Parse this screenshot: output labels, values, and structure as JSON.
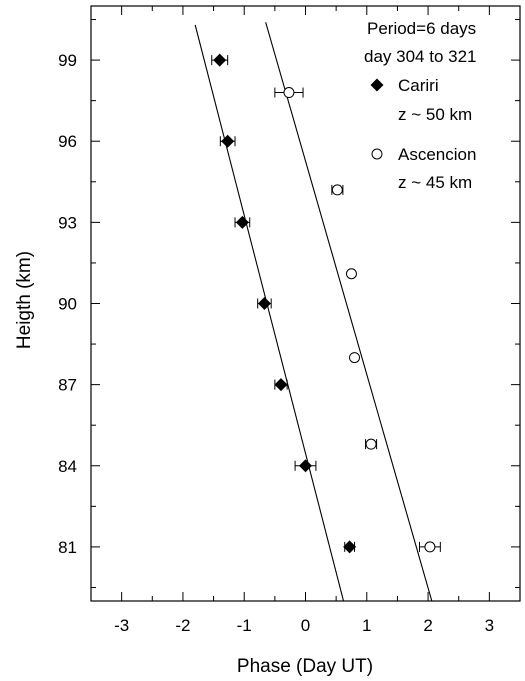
{
  "chart_data": {
    "type": "scatter",
    "xlabel": "Phase (Day UT)",
    "ylabel": "Heigth (km)",
    "xlim": [
      -3.5,
      3.5
    ],
    "ylim": [
      79.0,
      101.0
    ],
    "x_ticks": [
      "-3",
      "-2",
      "-1",
      "0",
      "1",
      "2",
      "3"
    ],
    "y_ticks": [
      "81",
      "84",
      "87",
      "90",
      "93",
      "96",
      "99"
    ],
    "grid": false,
    "legend_position": "top-right",
    "legend": {
      "line1": "Period=6 days",
      "line2": "day 304 to 321"
    },
    "series": [
      {
        "name": "Cariri",
        "sublabel": "z ~ 50 km",
        "marker": "filled-diamond",
        "points": [
          {
            "x": -1.4,
            "y": 99.0,
            "err": 0.13
          },
          {
            "x": -1.27,
            "y": 96.0,
            "err": 0.12
          },
          {
            "x": -1.03,
            "y": 93.0,
            "err": 0.12
          },
          {
            "x": -0.67,
            "y": 90.0,
            "err": 0.11
          },
          {
            "x": -0.4,
            "y": 87.0,
            "err": 0.1
          },
          {
            "x": 0.0,
            "y": 84.0,
            "err": 0.17
          },
          {
            "x": 0.72,
            "y": 81.0,
            "err": 0.08
          }
        ],
        "fit_line": [
          [
            -1.8,
            100.3
          ],
          [
            0.7,
            78.3
          ]
        ]
      },
      {
        "name": "Ascencion",
        "sublabel": "z ~ 45 km",
        "marker": "open-circle",
        "points": [
          {
            "x": -0.27,
            "y": 97.8,
            "err": 0.23
          },
          {
            "x": 0.52,
            "y": 94.2,
            "err": 0.09
          },
          {
            "x": 0.75,
            "y": 91.1,
            "err": 0.0
          },
          {
            "x": 0.8,
            "y": 88.0,
            "err": 0.0
          },
          {
            "x": 1.07,
            "y": 84.8,
            "err": 0.09
          },
          {
            "x": 2.03,
            "y": 81.0,
            "err": 0.17
          }
        ],
        "fit_line": [
          [
            -0.65,
            100.4
          ],
          [
            2.15,
            78.3
          ]
        ]
      }
    ]
  }
}
